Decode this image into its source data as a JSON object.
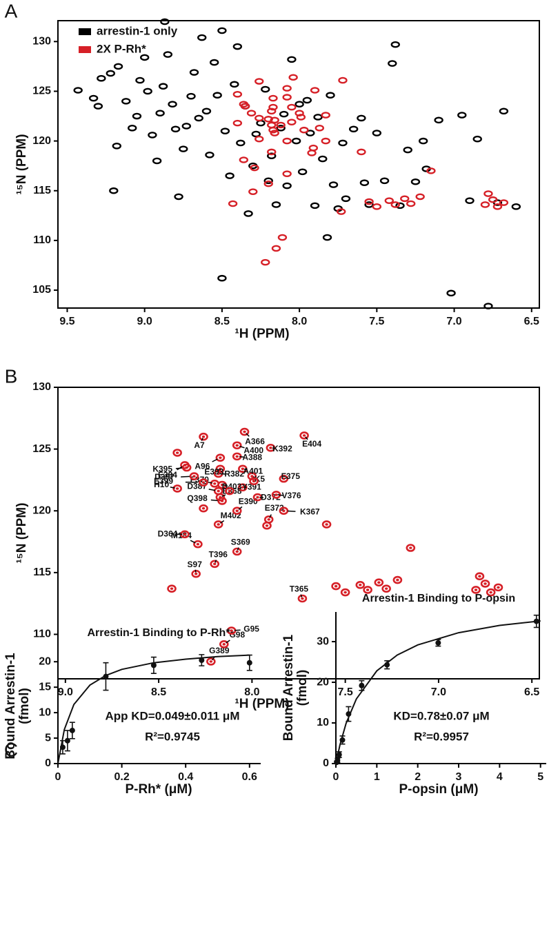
{
  "chart_data": [
    {
      "type": "scatter",
      "panel": "A",
      "xlabel": "¹H (PPM)",
      "ylabel": "¹⁵N (PPM)",
      "legend": "upper left",
      "xlim": [
        9.56,
        6.45
      ],
      "ylim": [
        103.2,
        132.1
      ],
      "xticks": [
        9.5,
        {
          "value": 9,
          "label": "9.0"
        },
        8.5,
        {
          "value": 8,
          "label": "8.0"
        },
        7.5,
        {
          "value": 7,
          "label": "7.0"
        },
        6.5
      ],
      "yticks": [
        105,
        110,
        115,
        120,
        125,
        130
      ],
      "series": [
        {
          "name": "arrestin-1 only",
          "color": "#000000",
          "x": [
            9.43,
            9.33,
            9.3,
            9.28,
            9.22,
            9.2,
            9.18,
            9.17,
            9.12,
            9.08,
            9.05,
            9.03,
            9.0,
            8.98,
            8.95,
            8.92,
            8.9,
            8.88,
            8.87,
            8.85,
            8.82,
            8.8,
            8.78,
            8.75,
            8.73,
            8.7,
            8.68,
            8.65,
            8.63,
            8.6,
            8.58,
            8.55,
            8.53,
            8.5,
            8.5,
            8.48,
            8.45,
            8.42,
            8.4,
            8.38,
            8.35,
            8.33,
            8.3,
            8.28,
            8.25,
            8.22,
            8.2,
            8.18,
            8.15,
            8.12,
            8.1,
            8.08,
            8.05,
            8.02,
            8.0,
            7.98,
            7.95,
            7.93,
            7.9,
            7.88,
            7.85,
            7.82,
            7.8,
            7.78,
            7.75,
            7.72,
            7.7,
            7.65,
            7.6,
            7.58,
            7.55,
            7.5,
            7.45,
            7.4,
            7.38,
            7.35,
            7.3,
            7.25,
            7.2,
            7.18,
            7.1,
            7.02,
            6.95,
            6.9,
            6.85,
            6.72,
            6.68,
            6.6,
            6.78
          ],
          "values": [
            125.1,
            124.3,
            123.5,
            126.3,
            126.8,
            115.0,
            119.5,
            127.5,
            124.0,
            121.3,
            122.5,
            126.1,
            128.4,
            125.0,
            120.6,
            118.0,
            122.8,
            125.5,
            132.0,
            128.7,
            123.7,
            121.2,
            114.4,
            119.2,
            121.5,
            124.5,
            126.9,
            122.3,
            130.4,
            123.0,
            118.6,
            127.9,
            124.6,
            131.1,
            106.2,
            121.0,
            116.5,
            125.7,
            129.5,
            119.8,
            123.5,
            112.7,
            117.5,
            120.7,
            121.8,
            125.2,
            116.0,
            118.5,
            113.6,
            121.3,
            122.7,
            115.5,
            128.2,
            120.0,
            123.7,
            116.9,
            124.1,
            120.8,
            113.5,
            122.4,
            118.2,
            110.3,
            124.6,
            115.6,
            113.2,
            119.8,
            114.2,
            121.2,
            122.3,
            115.8,
            113.6,
            120.8,
            116.0,
            127.8,
            129.7,
            113.5,
            119.1,
            115.9,
            120.0,
            117.2,
            122.1,
            104.7,
            122.6,
            114.0,
            120.2,
            113.8,
            123.0,
            113.4,
            103.4
          ]
        },
        {
          "name": "2X P-Rh*",
          "color": "#d62027",
          "x": [
            8.22,
            8.15,
            8.11,
            7.73,
            8.3,
            8.2,
            8.08,
            8.29,
            8.36,
            8.18,
            7.91,
            8.08,
            7.83,
            8.16,
            8.17,
            7.97,
            8.18,
            7.87,
            8.4,
            8.2,
            8.05,
            8.16,
            8.26,
            7.83,
            8.31,
            8.18,
            8.0,
            8.17,
            8.05,
            8.35,
            8.36,
            8.08,
            7.9,
            8.17,
            8.08,
            8.26,
            8.04,
            7.72,
            7.55,
            7.5,
            7.42,
            7.38,
            7.32,
            7.28,
            7.22,
            6.8,
            6.75,
            6.72,
            6.68,
            6.78,
            7.6,
            8.43,
            7.92,
            8.26,
            8.12,
            7.99,
            8.4,
            7.15
          ],
          "values": [
            107.8,
            109.2,
            110.3,
            112.9,
            114.9,
            115.7,
            116.7,
            117.3,
            118.1,
            118.9,
            119.3,
            120.0,
            120.0,
            120.8,
            121.1,
            121.1,
            121.6,
            121.3,
            121.8,
            122.2,
            121.9,
            122.1,
            122.3,
            122.6,
            122.8,
            123.0,
            122.8,
            123.4,
            123.4,
            123.5,
            123.7,
            124.4,
            125.1,
            124.3,
            125.3,
            126.0,
            126.4,
            126.1,
            113.9,
            113.4,
            114.0,
            113.6,
            114.2,
            113.7,
            114.4,
            113.6,
            114.1,
            113.4,
            113.8,
            114.7,
            118.9,
            113.7,
            118.8,
            120.2,
            121.6,
            122.4,
            124.7,
            117.0
          ]
        }
      ]
    },
    {
      "type": "scatter",
      "panel": "B",
      "xlabel": "¹H (PPM)",
      "ylabel": "¹⁵N (PPM)",
      "color": "#d62027",
      "xlim": [
        9.04,
        6.46
      ],
      "ylim": [
        106.4,
        130
      ],
      "xticks": [
        {
          "value": 9,
          "label": "9.0"
        },
        8.5,
        {
          "value": 8,
          "label": "8.0"
        },
        7.5,
        {
          "value": 7,
          "label": "7.0"
        },
        6.5
      ],
      "yticks": [
        110,
        115,
        120,
        125,
        130
      ],
      "x": [
        8.22,
        8.15,
        8.11,
        7.73,
        8.3,
        8.2,
        8.08,
        8.29,
        8.36,
        8.18,
        7.91,
        8.08,
        7.83,
        8.16,
        8.17,
        7.97,
        8.18,
        7.87,
        8.4,
        8.2,
        8.05,
        8.16,
        8.26,
        7.83,
        8.31,
        8.18,
        8.0,
        8.17,
        8.05,
        8.35,
        8.36,
        8.08,
        7.9,
        8.17,
        8.08,
        8.26,
        8.04,
        7.72,
        7.55,
        7.5,
        7.42,
        7.38,
        7.32,
        7.28,
        7.22,
        6.8,
        6.75,
        6.72,
        6.68,
        6.78,
        7.6,
        8.43,
        7.92,
        8.26,
        8.12,
        7.99,
        8.4,
        7.15
      ],
      "y": [
        107.8,
        109.2,
        110.3,
        112.9,
        114.9,
        115.7,
        116.7,
        117.3,
        118.1,
        118.9,
        119.3,
        120.0,
        120.0,
        120.8,
        121.1,
        121.1,
        121.6,
        121.3,
        121.8,
        122.2,
        121.9,
        122.1,
        122.3,
        122.6,
        122.8,
        123.0,
        122.8,
        123.4,
        123.4,
        123.5,
        123.7,
        124.4,
        125.1,
        124.3,
        125.3,
        126.0,
        126.4,
        126.1,
        113.9,
        113.4,
        114.0,
        113.6,
        114.2,
        113.7,
        114.4,
        113.6,
        114.1,
        113.4,
        113.8,
        114.7,
        118.9,
        113.7,
        118.8,
        120.2,
        121.6,
        122.4,
        124.7,
        117.0
      ],
      "labels": [
        "G389",
        "G98",
        "G95",
        "T365",
        "S97",
        "T396",
        "S369",
        "M184",
        "D364",
        "M402",
        "E373",
        "E390",
        "K367",
        "Q398",
        "E368",
        "D372",
        "D387",
        "V376",
        "H10",
        "F370",
        "Y391",
        "D403",
        "E399",
        "F375",
        "D397",
        "R382",
        "K5",
        "E393",
        "A401",
        "K395",
        "E394",
        "A388",
        "K392",
        "A96",
        "A400",
        "A7",
        "A366",
        "E404",
        null,
        null,
        null,
        null,
        null,
        null,
        null,
        null,
        null,
        null,
        null,
        null,
        null,
        null,
        null,
        null,
        null,
        null,
        null,
        null
      ]
    },
    {
      "type": "scatter",
      "panel": "C",
      "title": "Arrestin-1 Binding to P-Rh*",
      "xlabel": "P-Rh* (μM)",
      "ylabel": [
        "Bound Arrestin-1",
        "(fmol)"
      ],
      "annotations": [
        "App KD=0.049±0.011 μM",
        "R²=0.9745"
      ],
      "color": "#111111",
      "xlim": [
        0,
        0.635
      ],
      "ylim": [
        0,
        22.6
      ],
      "xticks": [
        0,
        0.2,
        0.4,
        0.6
      ],
      "yticks": [
        0,
        5,
        10,
        15,
        20
      ],
      "x": [
        0.015,
        0.03,
        0.045,
        0.15,
        0.3,
        0.45,
        0.6
      ],
      "values": [
        3.2,
        4.5,
        6.5,
        17.1,
        19.3,
        20.3,
        19.8
      ],
      "errors": [
        1.3,
        2.0,
        1.6,
        2.7,
        1.6,
        1.1,
        1.5
      ],
      "fit": {
        "x": [
          0,
          0.02,
          0.05,
          0.1,
          0.15,
          0.2,
          0.3,
          0.4,
          0.5,
          0.6
        ],
        "values": [
          0,
          6.7,
          11.6,
          15.4,
          17.3,
          18.5,
          19.8,
          20.5,
          21.0,
          21.3
        ]
      }
    },
    {
      "type": "scatter",
      "title": "Arrestin-1 Binding to P-opsin",
      "xlabel": "P-opsin (μM)",
      "ylabel": [
        "Bound Arrestin-1",
        "(fmol)"
      ],
      "annotations": [
        "KD=0.78±0.07 μM",
        "R²=0.9957"
      ],
      "color": "#111111",
      "xlim": [
        0,
        5.14
      ],
      "ylim": [
        0,
        37.3
      ],
      "xticks": [
        0,
        1,
        2,
        3,
        4,
        5
      ],
      "yticks": [
        0,
        10,
        20,
        30
      ],
      "x": [
        0.02,
        0.04,
        0.08,
        0.16,
        0.31,
        0.63,
        1.25,
        2.5,
        4.9
      ],
      "values": [
        0.3,
        0.8,
        2.2,
        5.8,
        12.2,
        19.2,
        24.3,
        29.7,
        35.0
      ],
      "errors": [
        0.3,
        0.5,
        0.7,
        1.0,
        1.8,
        1.2,
        1.0,
        0.8,
        1.5
      ],
      "fit": {
        "x": [
          0,
          0.1,
          0.25,
          0.5,
          1,
          1.5,
          2,
          3,
          4,
          5
        ],
        "values": [
          0,
          4.6,
          9.9,
          15.9,
          22.8,
          26.7,
          29.2,
          32.2,
          34.0,
          35.1
        ]
      }
    }
  ]
}
